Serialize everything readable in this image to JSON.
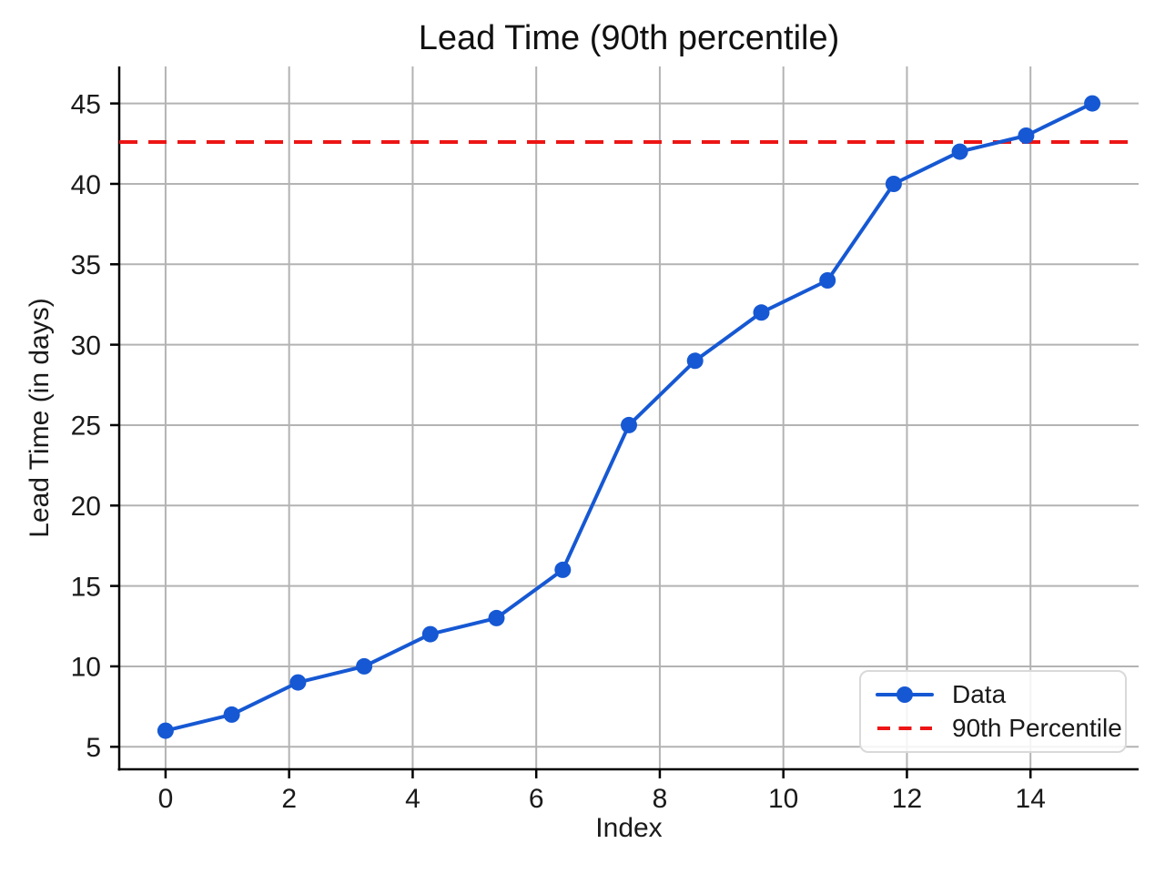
{
  "chart_data": {
    "type": "line",
    "title": "Lead Time (90th percentile)",
    "xlabel": "Index",
    "ylabel": "Lead Time (in days)",
    "x": [
      0,
      1.0714,
      2.1429,
      3.2143,
      4.2857,
      5.3571,
      6.4286,
      7.5,
      8.5714,
      9.6429,
      10.7143,
      11.7857,
      12.8571,
      13.9286,
      15
    ],
    "series": [
      {
        "name": "Data",
        "type": "line-markers",
        "color": "#1658d3",
        "values": [
          6,
          7,
          9,
          10,
          12,
          13,
          16,
          25,
          29,
          32,
          34,
          40,
          42,
          43,
          45
        ]
      },
      {
        "name": "90th Percentile",
        "type": "hline-dashed",
        "color": "#ed1515",
        "value": 42.6
      }
    ],
    "xticks": [
      0,
      2,
      4,
      6,
      8,
      10,
      12,
      14
    ],
    "yticks": [
      5,
      10,
      15,
      20,
      25,
      30,
      35,
      40,
      45
    ],
    "xlim": [
      -0.75,
      15.75
    ],
    "ylim": [
      3.6,
      47.3
    ],
    "grid": true,
    "grid_color": "#b3b3b3",
    "spine_color": "#000000",
    "text_color": "#1a1a1a",
    "legend_position": "lower right"
  }
}
